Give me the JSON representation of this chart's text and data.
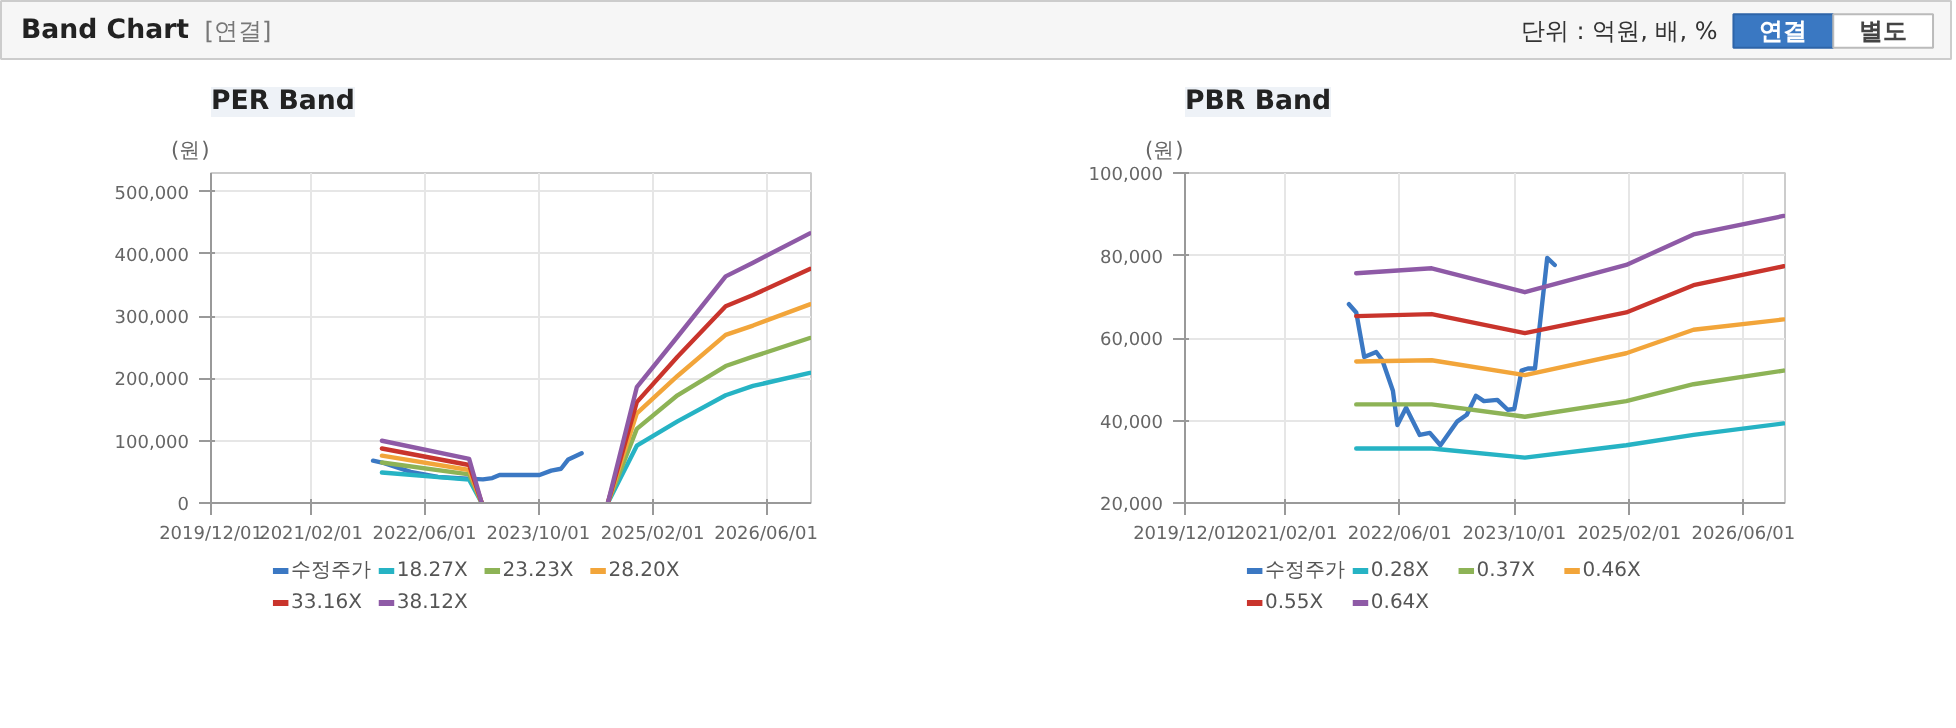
{
  "chart_data": [
    {
      "type": "other",
      "title": "Band Chart",
      "annotations": [
        "[연결]",
        "단위 : 억원, 배, %",
        "연결",
        "별도"
      ]
    },
    {
      "type": "line",
      "title": "PER Band",
      "ylabel": "(원)",
      "grid": true,
      "legend": "bottom",
      "marker": "none",
      "line_style": "solid",
      "xlim": [
        "2019-12-01",
        "2026-12-10"
      ],
      "ylim": [
        0,
        530000
      ],
      "xticks": [
        {
          "value": "2019-12-01",
          "label": "2019/12/01"
        },
        {
          "value": "2021-02-01",
          "label": "2021/02/01"
        },
        {
          "value": "2022-06-01",
          "label": "2022/06/01"
        },
        {
          "value": "2023-10-01",
          "label": "2023/10/01"
        },
        {
          "value": "2025-02-01",
          "label": "2025/02/01"
        },
        {
          "value": "2026-06-01",
          "label": "2026/06/01"
        }
      ],
      "yticks": [
        {
          "value": 0,
          "label": "0"
        },
        {
          "value": 100000,
          "label": "100,000"
        },
        {
          "value": 200000,
          "label": "200,000"
        },
        {
          "value": 300000,
          "label": "300,000"
        },
        {
          "value": 400000,
          "label": "400,000"
        },
        {
          "value": 500000,
          "label": "500,000"
        }
      ],
      "x": [
        "2021-12-01",
        "2022-12-09",
        "2023-02-01",
        "2023-10-01",
        "2024-07-24",
        "2024-11-25",
        "2025-05-18",
        "2025-12-10",
        "2026-04-06",
        "2026-12-05"
      ],
      "series": [
        {
          "name": "수정주가",
          "color": "#3b78c3",
          "x": [
            "2021-10-24",
            "2021-12-01",
            "2022-04-03",
            "2022-07-28",
            "2022-10-25",
            "2023-02-06",
            "2023-03-18",
            "2023-04-18",
            "2023-10-06",
            "2023-11-25",
            "2024-01-06",
            "2024-02-06",
            "2024-04-03"
          ],
          "values": [
            68000,
            65000,
            50000,
            42000,
            40000,
            38000,
            40000,
            45000,
            45000,
            52000,
            55000,
            70000,
            80000
          ]
        },
        {
          "name": "18.27X",
          "color": "#26b3c4",
          "values": [
            49000,
            37500,
            0,
            null,
            0,
            92000,
            131000,
            173000,
            188000,
            209000
          ]
        },
        {
          "name": "23.23X",
          "color": "#8db356",
          "values": [
            65000,
            46000,
            0,
            null,
            0,
            119000,
            173000,
            220000,
            235000,
            265000
          ]
        },
        {
          "name": "28.20X",
          "color": "#f2a53a",
          "values": [
            76000,
            53000,
            0,
            null,
            0,
            144000,
            204000,
            270000,
            285000,
            319000
          ]
        },
        {
          "name": "33.16X",
          "color": "#c9342c",
          "values": [
            87500,
            61000,
            0,
            null,
            0,
            162000,
            235000,
            316000,
            334000,
            376000
          ]
        },
        {
          "name": "38.12X",
          "color": "#8e5aa6",
          "values": [
            100000,
            71000,
            0,
            null,
            0,
            186000,
            267000,
            364000,
            386000,
            433000
          ]
        }
      ]
    },
    {
      "type": "line",
      "title": "PBR Band",
      "ylabel": "(원)",
      "grid": true,
      "legend": "bottom",
      "marker": "none",
      "line_style": "solid",
      "xlim": [
        "2019-12-01",
        "2026-11-25"
      ],
      "ylim": [
        20000,
        100000
      ],
      "xticks": [
        {
          "value": "2019-12-01",
          "label": "2019/12/01"
        },
        {
          "value": "2021-02-01",
          "label": "2021/02/01"
        },
        {
          "value": "2022-06-01",
          "label": "2022/06/01"
        },
        {
          "value": "2023-10-01",
          "label": "2023/10/01"
        },
        {
          "value": "2025-02-01",
          "label": "2025/02/01"
        },
        {
          "value": "2026-06-01",
          "label": "2026/06/01"
        }
      ],
      "yticks": [
        {
          "value": 20000,
          "label": "20,000"
        },
        {
          "value": 40000,
          "label": "40,000"
        },
        {
          "value": 60000,
          "label": "60,000"
        },
        {
          "value": 80000,
          "label": "80,000"
        },
        {
          "value": 100000,
          "label": "100,000"
        }
      ],
      "x": [
        "2021-11-28",
        "2022-10-15",
        "2023-11-15",
        "2025-01-19",
        "2025-11-01",
        "2026-11-19"
      ],
      "series": [
        {
          "name": "수정주가",
          "color": "#3b78c3",
          "x": [
            "2021-10-28",
            "2021-11-28",
            "2022-01-01",
            "2022-02-21",
            "2022-03-19",
            "2022-05-03",
            "2022-05-22",
            "2022-06-28",
            "2022-08-25",
            "2022-10-07",
            "2022-11-21",
            "2023-02-01",
            "2023-03-13",
            "2023-04-21",
            "2023-05-25",
            "2023-07-21",
            "2023-09-03",
            "2023-10-01",
            "2023-11-01",
            "2023-11-28",
            "2023-12-28",
            "2024-02-18",
            "2024-03-21"
          ],
          "values": [
            68200,
            66200,
            55400,
            56600,
            54600,
            47200,
            38900,
            43100,
            36500,
            37000,
            34000,
            39800,
            41400,
            46000,
            44700,
            45000,
            42600,
            42800,
            52100,
            52600,
            52600,
            79400,
            77700
          ]
        },
        {
          "name": "0.28X",
          "color": "#26b3c4",
          "values": [
            33200,
            33200,
            31000,
            34000,
            36500,
            39300
          ]
        },
        {
          "name": "0.37X",
          "color": "#8db356",
          "values": [
            43900,
            43900,
            40900,
            44700,
            48800,
            52100
          ]
        },
        {
          "name": "0.46X",
          "color": "#f2a53a",
          "values": [
            54300,
            54600,
            51000,
            56300,
            62000,
            64500
          ]
        },
        {
          "name": "0.55X",
          "color": "#c9342c",
          "values": [
            65300,
            65800,
            61200,
            66200,
            72800,
            77400
          ]
        },
        {
          "name": "0.64X",
          "color": "#8e5aa6",
          "values": [
            75700,
            76900,
            71100,
            77700,
            85100,
            89600
          ]
        }
      ]
    }
  ]
}
